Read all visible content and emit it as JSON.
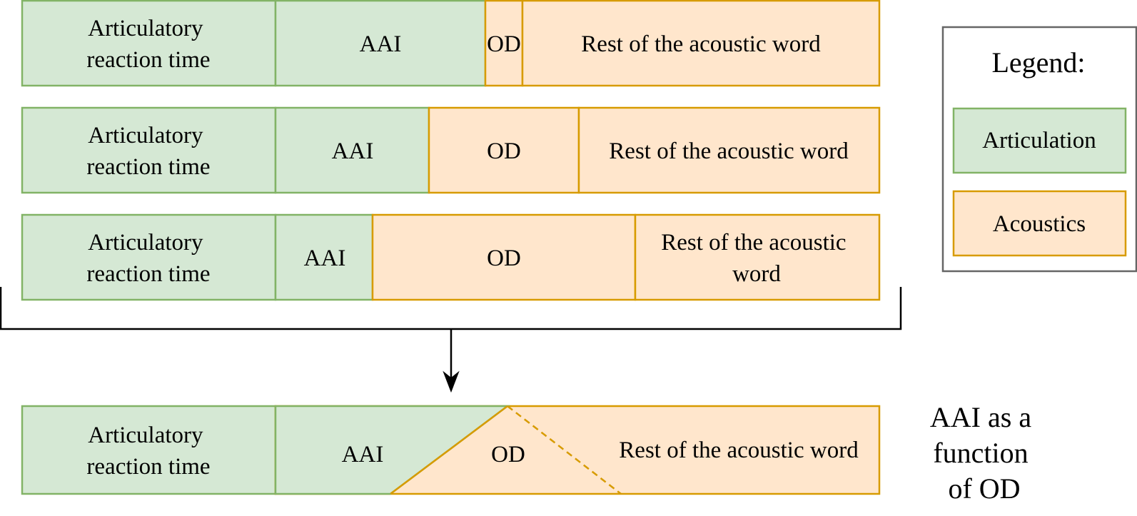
{
  "colors": {
    "articulation_fill": "#d5e8d4",
    "articulation_stroke": "#82b366",
    "acoustics_fill": "#ffe6cc",
    "acoustics_stroke": "#d79b00",
    "legend_border": "#666666",
    "line": "#000000"
  },
  "rows": [
    {
      "reaction_label": [
        "Articulatory",
        "reaction time"
      ],
      "aai_label": "AAI",
      "od_label": "OD",
      "rest_label": [
        "Rest of the acoustic word"
      ]
    },
    {
      "reaction_label": [
        "Articulatory",
        "reaction time"
      ],
      "aai_label": "AAI",
      "od_label": "OD",
      "rest_label": [
        "Rest of the acoustic word"
      ]
    },
    {
      "reaction_label": [
        "Articulatory",
        "reaction time"
      ],
      "aai_label": "AAI",
      "od_label": "OD",
      "rest_label": [
        "Rest of the acoustic",
        "word"
      ]
    }
  ],
  "combined": {
    "reaction_label": [
      "Articulatory",
      "reaction time"
    ],
    "aai_label": "AAI",
    "od_label": "OD",
    "rest_label": "Rest of the acoustic word",
    "caption": [
      "AAI as a",
      "function",
      "of OD"
    ]
  },
  "legend": {
    "title": "Legend:",
    "articulation_label": "Articulation",
    "acoustics_label": "Acoustics"
  }
}
